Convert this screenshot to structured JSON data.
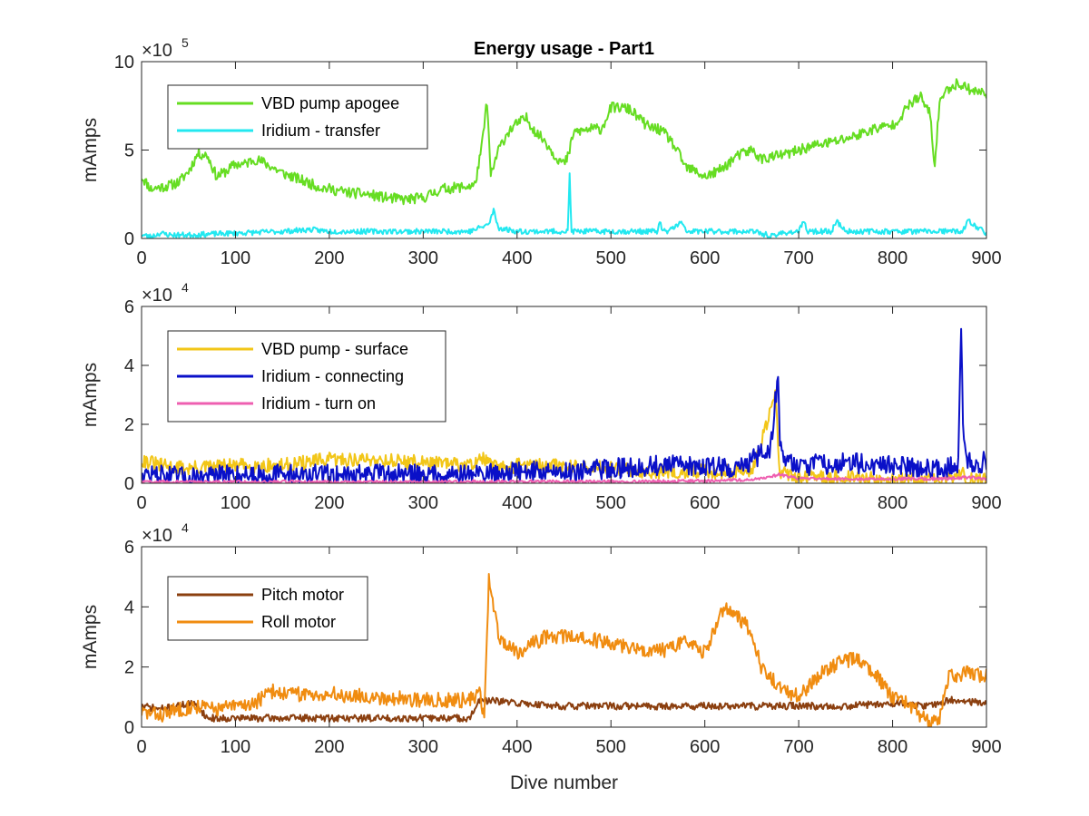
{
  "chart_data": [
    {
      "type": "line",
      "title": "Energy usage - Part1",
      "xlabel": "",
      "ylabel": "mAmps",
      "xlim": [
        0,
        900
      ],
      "ylim": [
        0,
        1000000
      ],
      "exponent_base": "×10",
      "exponent_power": "5",
      "xticks": [
        "0",
        "100",
        "200",
        "300",
        "400",
        "500",
        "600",
        "700",
        "800",
        "900"
      ],
      "yticks": [
        "0",
        "5",
        "10"
      ],
      "ytick_values": [
        0,
        500000,
        1000000
      ],
      "legend_location": "upper-left",
      "series": [
        {
          "name": "VBD pump apogee",
          "color": "#66dd22",
          "noise": 30000,
          "seed": 11,
          "x": [
            0,
            10,
            20,
            30,
            40,
            50,
            60,
            70,
            80,
            90,
            100,
            110,
            120,
            130,
            140,
            150,
            160,
            170,
            180,
            190,
            200,
            220,
            240,
            260,
            280,
            300,
            320,
            340,
            355,
            362,
            368,
            372,
            380,
            390,
            400,
            410,
            420,
            430,
            440,
            450,
            455,
            460,
            470,
            480,
            490,
            500,
            510,
            520,
            530,
            540,
            550,
            560,
            570,
            580,
            590,
            600,
            610,
            620,
            630,
            640,
            650,
            660,
            670,
            680,
            690,
            700,
            720,
            740,
            760,
            780,
            800,
            810,
            820,
            830,
            840,
            845,
            850,
            860,
            870,
            880,
            890,
            900
          ],
          "y": [
            350000,
            280000,
            290000,
            300000,
            320000,
            380000,
            480000,
            470000,
            350000,
            380000,
            420000,
            420000,
            450000,
            430000,
            400000,
            370000,
            350000,
            330000,
            310000,
            290000,
            280000,
            260000,
            250000,
            230000,
            220000,
            230000,
            280000,
            290000,
            300000,
            500000,
            780000,
            350000,
            500000,
            600000,
            650000,
            680000,
            600000,
            550000,
            470000,
            420000,
            470000,
            600000,
            610000,
            620000,
            620000,
            740000,
            740000,
            730000,
            680000,
            630000,
            620000,
            580000,
            500000,
            400000,
            380000,
            350000,
            370000,
            400000,
            450000,
            480000,
            500000,
            450000,
            460000,
            470000,
            480000,
            500000,
            530000,
            550000,
            580000,
            620000,
            640000,
            700000,
            770000,
            800000,
            700000,
            400000,
            780000,
            850000,
            880000,
            850000,
            830000,
            820000
          ]
        },
        {
          "name": "Iridium - transfer",
          "color": "#22e8f0",
          "noise": 15000,
          "seed": 23,
          "x": [
            0,
            10,
            20,
            30,
            50,
            100,
            150,
            180,
            200,
            250,
            300,
            350,
            360,
            370,
            375,
            380,
            400,
            450,
            454,
            456,
            458,
            460,
            500,
            550,
            552,
            555,
            560,
            575,
            580,
            600,
            650,
            675,
            680,
            700,
            705,
            710,
            735,
            740,
            750,
            800,
            850,
            875,
            880,
            900
          ],
          "y": [
            20000,
            10000,
            30000,
            20000,
            20000,
            30000,
            40000,
            50000,
            40000,
            40000,
            40000,
            40000,
            60000,
            80000,
            160000,
            60000,
            40000,
            40000,
            40000,
            360000,
            40000,
            40000,
            40000,
            40000,
            100000,
            40000,
            40000,
            90000,
            40000,
            40000,
            40000,
            10000,
            30000,
            40000,
            90000,
            40000,
            40000,
            100000,
            40000,
            40000,
            40000,
            40000,
            100000,
            30000
          ]
        }
      ]
    },
    {
      "type": "line",
      "title": "",
      "xlabel": "",
      "ylabel": "mAmps",
      "xlim": [
        0,
        900
      ],
      "ylim": [
        0,
        60000
      ],
      "exponent_base": "×10",
      "exponent_power": "4",
      "xticks": [
        "0",
        "100",
        "200",
        "300",
        "400",
        "500",
        "600",
        "700",
        "800",
        "900"
      ],
      "yticks": [
        "0",
        "2",
        "4",
        "6"
      ],
      "ytick_values": [
        0,
        20000,
        40000,
        60000
      ],
      "legend_location": "upper-left",
      "series": [
        {
          "name": "VBD pump - surface",
          "color": "#f2c618",
          "noise": 2500,
          "seed": 31,
          "x": [
            0,
            20,
            50,
            100,
            150,
            200,
            250,
            300,
            350,
            360,
            370,
            380,
            400,
            450,
            500,
            550,
            600,
            650,
            675,
            680,
            690,
            700,
            750,
            800,
            850,
            875,
            880,
            900
          ],
          "y": [
            8000,
            6000,
            5000,
            6000,
            6000,
            8000,
            8000,
            7000,
            6000,
            9000,
            7000,
            5000,
            6000,
            6000,
            5000,
            4000,
            4000,
            4000,
            30000,
            4000,
            3000,
            2000,
            2000,
            1000,
            1000,
            3000,
            1000,
            1000
          ]
        },
        {
          "name": "Iridium - connecting",
          "color": "#0a10c8",
          "noise": 3500,
          "seed": 47,
          "x": [
            0,
            50,
            100,
            150,
            200,
            250,
            300,
            350,
            400,
            450,
            500,
            550,
            600,
            640,
            650,
            670,
            675,
            678,
            680,
            685,
            700,
            750,
            800,
            850,
            870,
            873,
            875,
            878,
            890,
            900
          ],
          "y": [
            3000,
            2000,
            3000,
            3000,
            3000,
            3000,
            3000,
            3000,
            4000,
            4000,
            5000,
            6000,
            6000,
            5000,
            8000,
            12000,
            28000,
            36000,
            15000,
            8000,
            6000,
            7000,
            6000,
            5000,
            6000,
            52000,
            20000,
            8000,
            6000,
            8000
          ]
        },
        {
          "name": "Iridium - turn on",
          "color": "#ee5fb0",
          "noise": 500,
          "seed": 59,
          "x": [
            0,
            100,
            200,
            300,
            400,
            500,
            600,
            650,
            680,
            700,
            750,
            800,
            850,
            880,
            900
          ],
          "y": [
            500,
            500,
            500,
            500,
            600,
            600,
            800,
            1200,
            3000,
            1500,
            1500,
            1500,
            1500,
            2000,
            1500
          ]
        }
      ]
    },
    {
      "type": "line",
      "title": "",
      "xlabel": "Dive number",
      "ylabel": "mAmps",
      "xlim": [
        0,
        900
      ],
      "ylim": [
        0,
        60000
      ],
      "exponent_base": "×10",
      "exponent_power": "4",
      "xticks": [
        "0",
        "100",
        "200",
        "300",
        "400",
        "500",
        "600",
        "700",
        "800",
        "900"
      ],
      "yticks": [
        "0",
        "2",
        "4",
        "6"
      ],
      "ytick_values": [
        0,
        20000,
        40000,
        60000
      ],
      "legend_location": "upper-left",
      "series": [
        {
          "name": "Pitch motor",
          "color": "#8b3f0f",
          "noise": 1200,
          "seed": 71,
          "x": [
            0,
            20,
            40,
            50,
            60,
            70,
            100,
            200,
            300,
            350,
            360,
            400,
            450,
            500,
            550,
            600,
            650,
            700,
            750,
            800,
            840,
            860,
            900
          ],
          "y": [
            7000,
            6000,
            7000,
            8000,
            7000,
            3000,
            3000,
            3000,
            3000,
            3000,
            9000,
            8000,
            7000,
            7000,
            7000,
            7000,
            7000,
            7000,
            7000,
            8000,
            7000,
            9000,
            8000
          ]
        },
        {
          "name": "Roll motor",
          "color": "#f08c10",
          "noise": 2500,
          "seed": 83,
          "x": [
            0,
            20,
            40,
            60,
            80,
            100,
            120,
            140,
            160,
            200,
            250,
            300,
            350,
            360,
            365,
            370,
            380,
            400,
            430,
            460,
            500,
            550,
            580,
            600,
            620,
            640,
            650,
            660,
            680,
            700,
            720,
            740,
            760,
            780,
            800,
            820,
            840,
            850,
            860,
            880,
            900
          ],
          "y": [
            5000,
            4000,
            6000,
            7000,
            6000,
            7000,
            8000,
            12000,
            11000,
            11000,
            10000,
            9000,
            9000,
            12000,
            2000,
            50000,
            30000,
            25000,
            30000,
            30000,
            28000,
            25000,
            28000,
            25000,
            40000,
            35000,
            32000,
            20000,
            13000,
            10000,
            17000,
            21000,
            23000,
            18000,
            10000,
            7000,
            1000,
            3000,
            17000,
            18000,
            17000
          ]
        }
      ]
    }
  ]
}
